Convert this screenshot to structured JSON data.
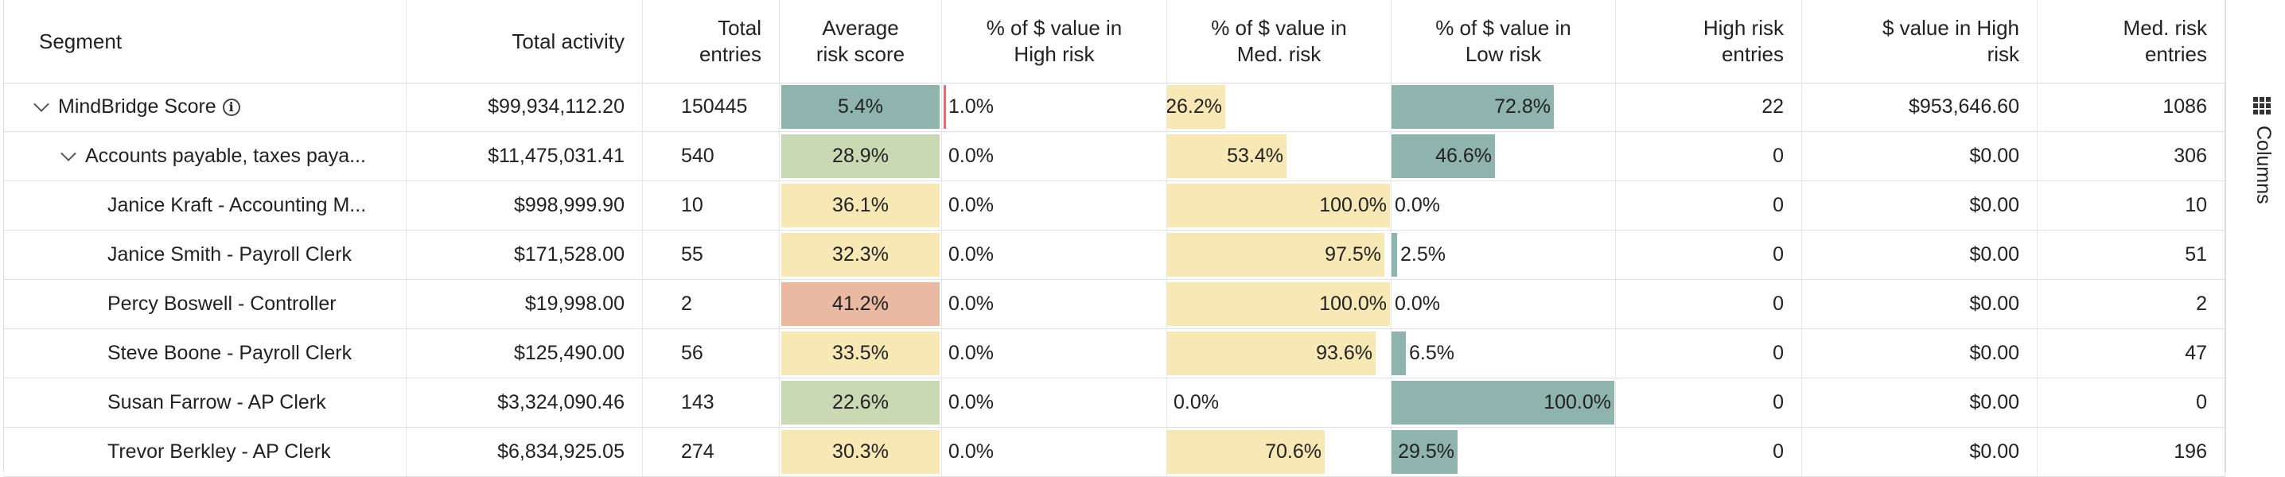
{
  "headers": {
    "segment": "Segment",
    "total_activity": "Total activity",
    "total_entries_1": "Total",
    "total_entries_2": "entries",
    "avg_risk_1": "Average",
    "avg_risk_2": "risk score",
    "pct_high_1": "% of $ value in",
    "pct_high_2": "High risk",
    "pct_med_1": "% of $ value in",
    "pct_med_2": "Med. risk",
    "pct_low_1": "% of $ value in",
    "pct_low_2": "Low risk",
    "high_entries_1": "High risk",
    "high_entries_2": "entries",
    "value_high_1": "$ value in High",
    "value_high_2": "risk",
    "med_entries_1": "Med. risk",
    "med_entries_2": "entries"
  },
  "columns_button": {
    "label": "Columns",
    "icon": "grid-dots-icon"
  },
  "colors": {
    "risk_green": "#c9d9b4",
    "risk_yellow": "#f7e8b5",
    "risk_orange": "#e9b9a2",
    "risk_teal": "#8fb3ad",
    "bar_yellow": "#f7e8b5",
    "bar_teal": "#8fb3ad",
    "bar_red": "#e07070"
  },
  "rows": [
    {
      "segment": "MindBridge Score",
      "level": 0,
      "expander": true,
      "info": true,
      "total_activity": "$99,934,112.20",
      "total_entries": "150445",
      "avg_risk": "5.4%",
      "risk_color": "teal",
      "high": "1.0%",
      "high_frac": 0.01,
      "med": "26.2%",
      "med_frac": 0.262,
      "low": "72.8%",
      "low_frac": 0.728,
      "high_entries": "22",
      "value_high": "$953,646.60",
      "med_entries": "1086"
    },
    {
      "segment": "Accounts payable, taxes paya...",
      "level": 1,
      "expander": true,
      "info": false,
      "total_activity": "$11,475,031.41",
      "total_entries": "540",
      "avg_risk": "28.9%",
      "risk_color": "green",
      "high": "0.0%",
      "high_frac": 0,
      "med": "53.4%",
      "med_frac": 0.534,
      "low": "46.6%",
      "low_frac": 0.466,
      "high_entries": "0",
      "value_high": "$0.00",
      "med_entries": "306"
    },
    {
      "segment": "Janice Kraft - Accounting M...",
      "level": 2,
      "expander": false,
      "info": false,
      "total_activity": "$998,999.90",
      "total_entries": "10",
      "avg_risk": "36.1%",
      "risk_color": "yellow",
      "high": "0.0%",
      "high_frac": 0,
      "med": "100.0%",
      "med_frac": 1.0,
      "low": "0.0%",
      "low_frac": 0,
      "high_entries": "0",
      "value_high": "$0.00",
      "med_entries": "10"
    },
    {
      "segment": "Janice Smith - Payroll Clerk",
      "level": 2,
      "expander": false,
      "info": false,
      "total_activity": "$171,528.00",
      "total_entries": "55",
      "avg_risk": "32.3%",
      "risk_color": "yellow",
      "high": "0.0%",
      "high_frac": 0,
      "med": "97.5%",
      "med_frac": 0.975,
      "low": "2.5%",
      "low_frac": 0.025,
      "high_entries": "0",
      "value_high": "$0.00",
      "med_entries": "51"
    },
    {
      "segment": "Percy Boswell - Controller",
      "level": 2,
      "expander": false,
      "info": false,
      "total_activity": "$19,998.00",
      "total_entries": "2",
      "avg_risk": "41.2%",
      "risk_color": "orange",
      "high": "0.0%",
      "high_frac": 0,
      "med": "100.0%",
      "med_frac": 1.0,
      "low": "0.0%",
      "low_frac": 0,
      "high_entries": "0",
      "value_high": "$0.00",
      "med_entries": "2"
    },
    {
      "segment": "Steve Boone - Payroll Clerk",
      "level": 2,
      "expander": false,
      "info": false,
      "total_activity": "$125,490.00",
      "total_entries": "56",
      "avg_risk": "33.5%",
      "risk_color": "yellow",
      "high": "0.0%",
      "high_frac": 0,
      "med": "93.6%",
      "med_frac": 0.936,
      "low": "6.5%",
      "low_frac": 0.065,
      "high_entries": "0",
      "value_high": "$0.00",
      "med_entries": "47"
    },
    {
      "segment": "Susan Farrow - AP Clerk",
      "level": 2,
      "expander": false,
      "info": false,
      "total_activity": "$3,324,090.46",
      "total_entries": "143",
      "avg_risk": "22.6%",
      "risk_color": "green",
      "high": "0.0%",
      "high_frac": 0,
      "med": "0.0%",
      "med_frac": 0,
      "low": "100.0%",
      "low_frac": 1.0,
      "high_entries": "0",
      "value_high": "$0.00",
      "med_entries": "0"
    },
    {
      "segment": "Trevor Berkley - AP Clerk",
      "level": 2,
      "expander": false,
      "info": false,
      "total_activity": "$6,834,925.05",
      "total_entries": "274",
      "avg_risk": "30.3%",
      "risk_color": "yellow",
      "high": "0.0%",
      "high_frac": 0,
      "med": "70.6%",
      "med_frac": 0.706,
      "low": "29.5%",
      "low_frac": 0.295,
      "high_entries": "0",
      "value_high": "$0.00",
      "med_entries": "196"
    }
  ]
}
